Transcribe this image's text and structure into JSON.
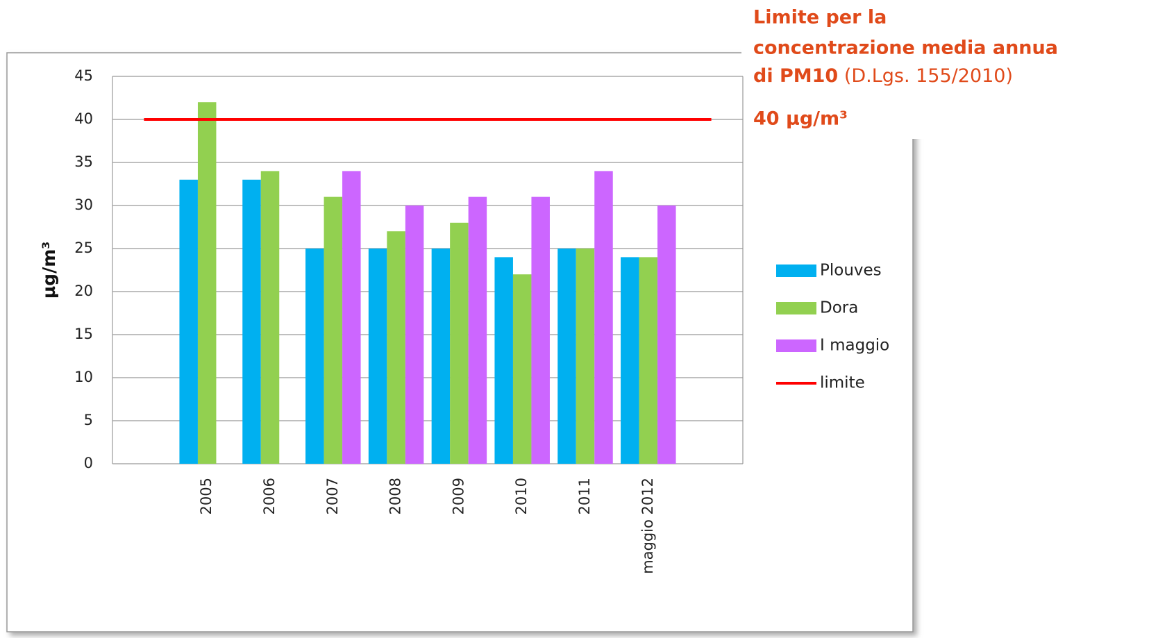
{
  "chart_data": {
    "type": "bar",
    "y_label": "µg/m³",
    "categories": [
      null,
      "2005",
      "2006",
      "2007",
      "2008",
      "2009",
      "2010",
      "2011",
      "maggio 2012",
      null
    ],
    "series": [
      {
        "name": "Plouves",
        "color": "#00b0f0",
        "values": [
          null,
          33,
          33,
          25,
          25,
          25,
          24,
          25,
          24,
          null
        ]
      },
      {
        "name": "Dora",
        "color": "#92d050",
        "values": [
          null,
          42,
          34,
          31,
          27,
          28,
          22,
          25,
          24,
          null
        ]
      },
      {
        "name": "I maggio",
        "color": "#cc66ff",
        "values": [
          null,
          null,
          null,
          34,
          30,
          31,
          31,
          34,
          30,
          null
        ]
      },
      {
        "name": "limite",
        "color": "#ff0000",
        "type": "line",
        "values": [
          40,
          40,
          40,
          40,
          40,
          40,
          40,
          40,
          40,
          40
        ]
      }
    ],
    "ylim": [
      0,
      45
    ],
    "yticks": [
      0,
      5,
      10,
      15,
      20,
      25,
      30,
      35,
      40,
      45
    ],
    "grid": true,
    "legend": "right",
    "annotation": {
      "lines": [
        "Limite per la",
        "concentrazione media annua"
      ],
      "bold_part": "di PM10",
      "source": "(D.Lgs. 155/2010)",
      "limit": "40 µg/m³"
    }
  }
}
